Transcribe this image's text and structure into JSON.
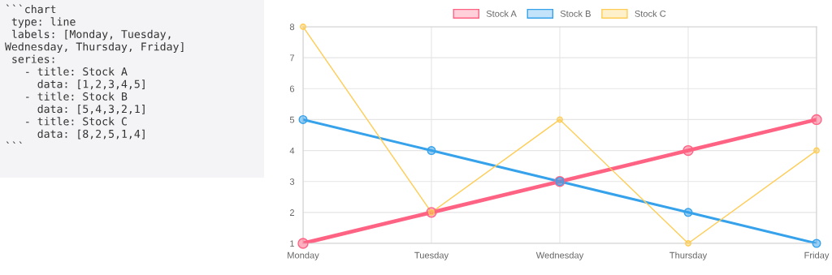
{
  "chart_data": {
    "type": "line",
    "categories": [
      "Monday",
      "Tuesday",
      "Wednesday",
      "Thursday",
      "Friday"
    ],
    "series": [
      {
        "name": "Stock A",
        "color": "#ff6384",
        "values": [
          1,
          2,
          3,
          4,
          5
        ]
      },
      {
        "name": "Stock B",
        "color": "#36a2eb",
        "values": [
          5,
          4,
          3,
          2,
          1
        ]
      },
      {
        "name": "Stock C",
        "color": "#ffcd56",
        "values": [
          8,
          2,
          5,
          1,
          4
        ]
      }
    ],
    "ylim": [
      1,
      8
    ],
    "yticks": [
      1,
      2,
      3,
      4,
      5,
      6,
      7,
      8
    ],
    "grid": true,
    "legend": "top",
    "marker": "circle",
    "line_style": "solid",
    "annotations": [
      "```chart\n type: line\n labels: [Monday, Tuesday,\nWednesday, Thursday, Friday]\n series:\n   - title: Stock A\n     data: [1,2,3,4,5]\n   - title: Stock B\n     data: [5,4,3,2,1]\n   - title: Stock C\n     data: [8,2,5,1,4]\n```"
    ]
  }
}
